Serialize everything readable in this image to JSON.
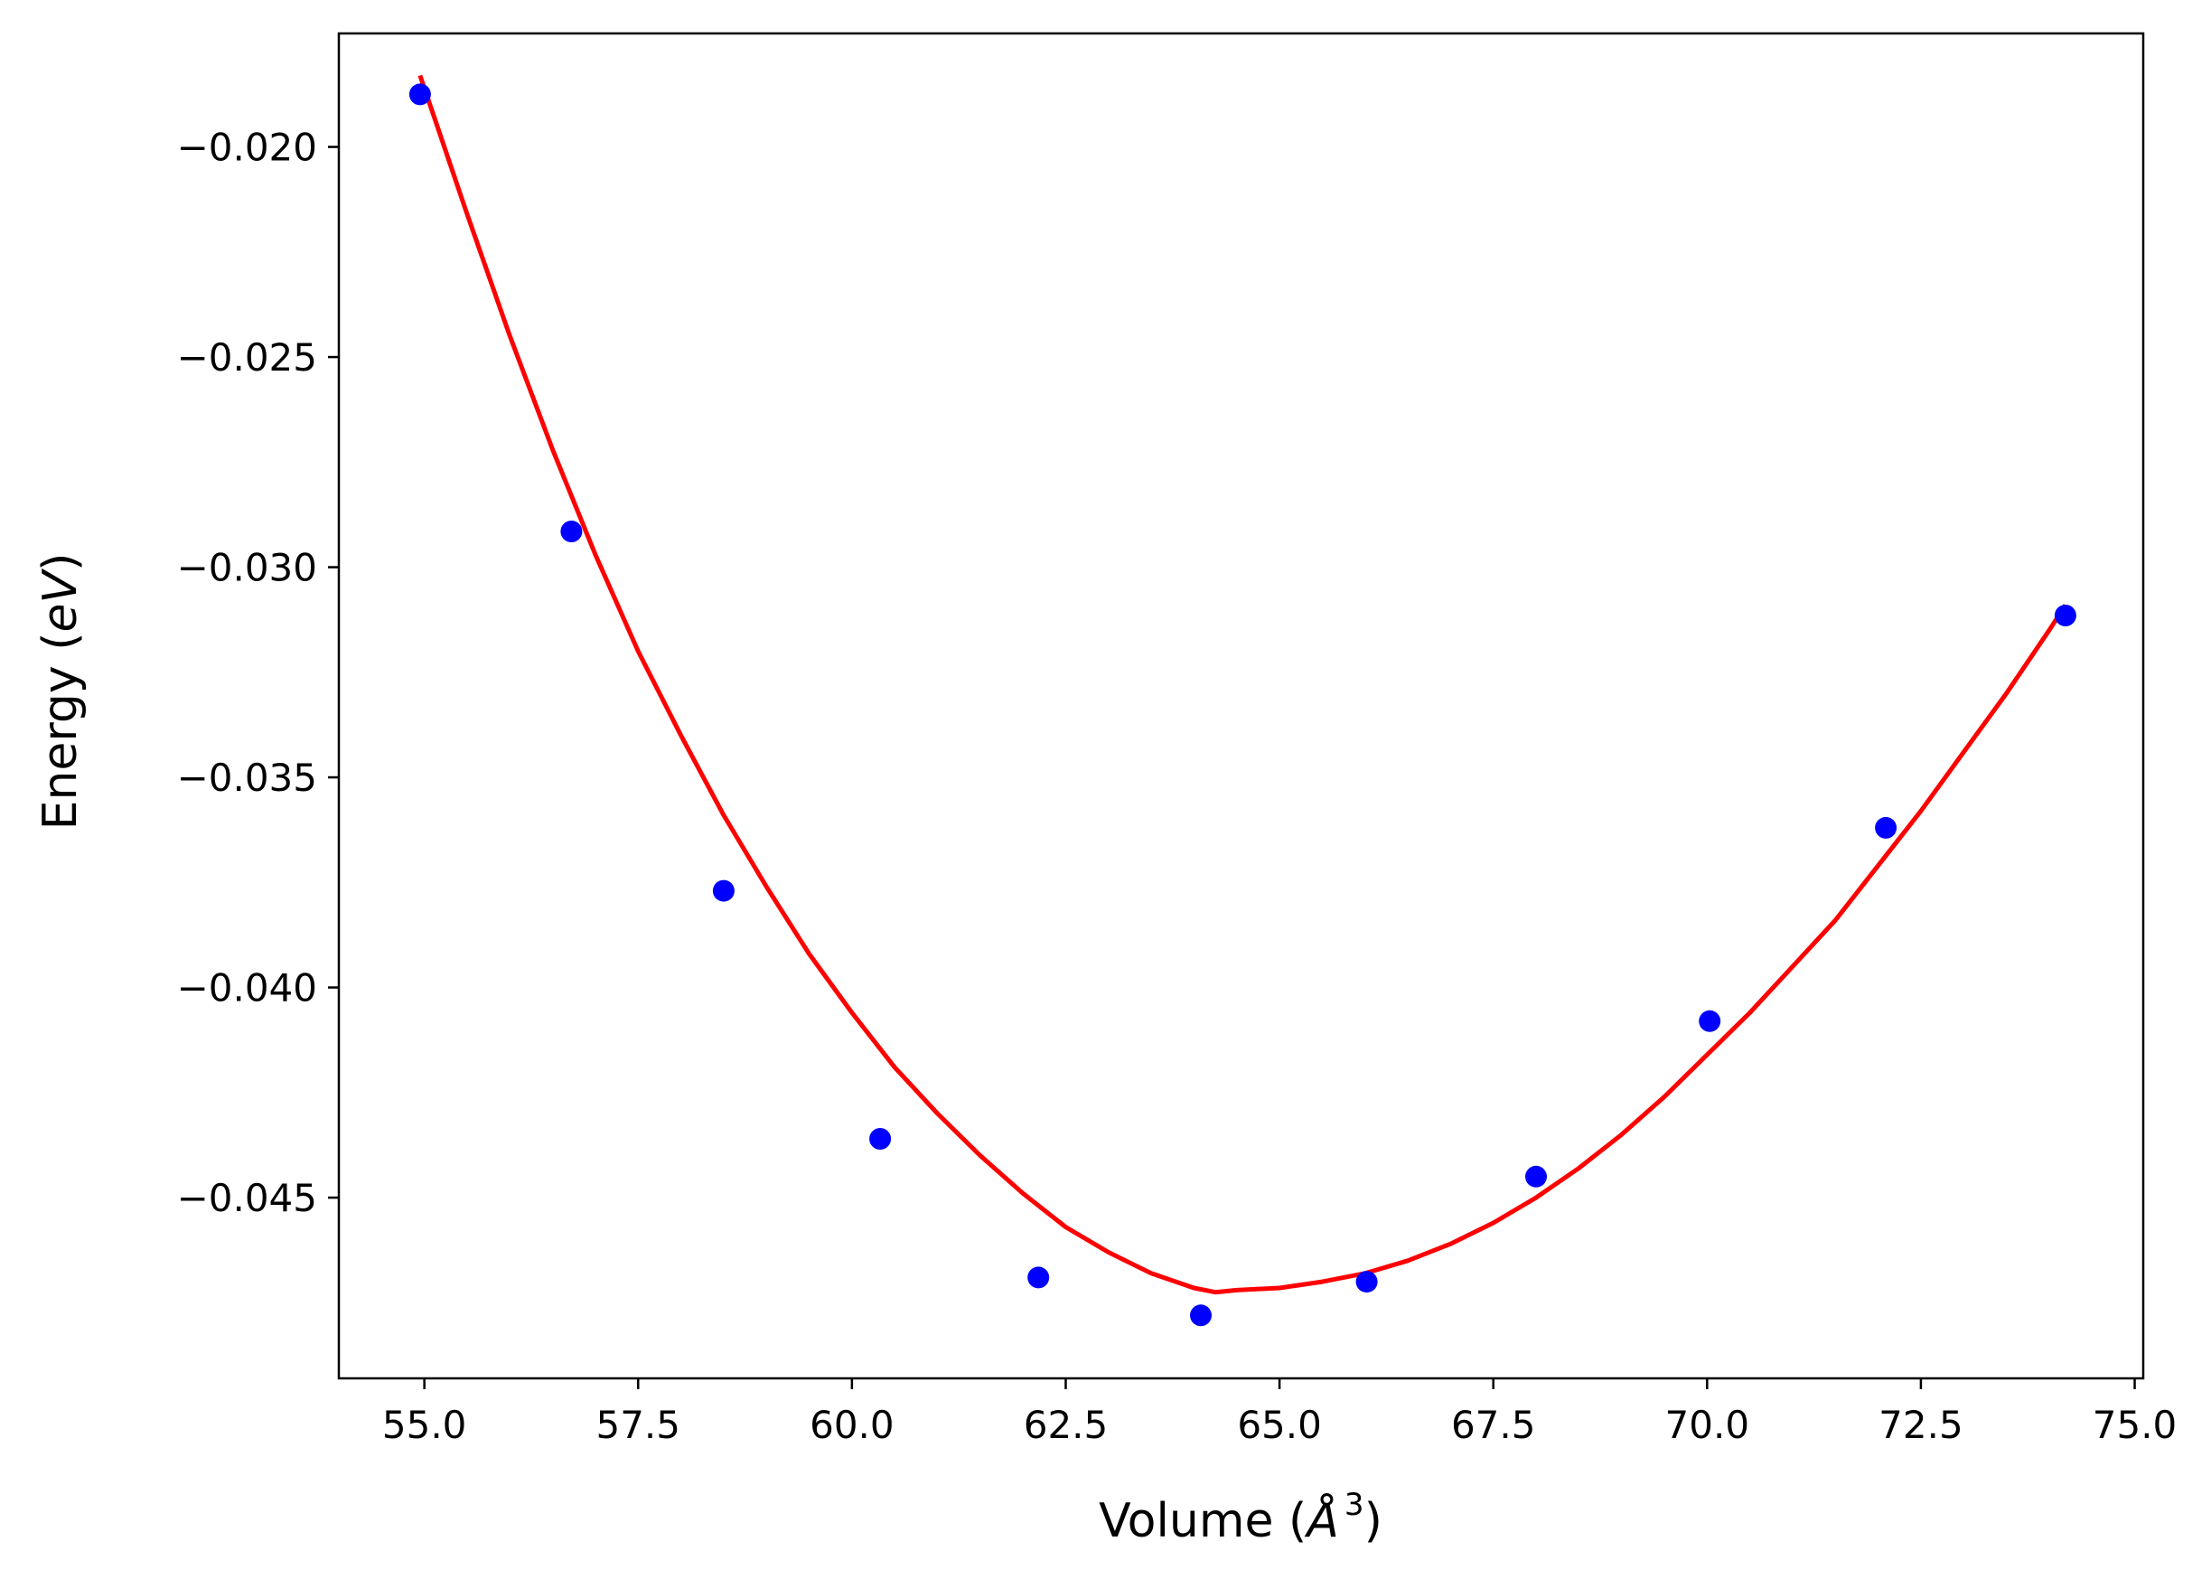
{
  "chart_data": {
    "type": "scatter",
    "title": "",
    "xlabel": "Volume (Å³)",
    "xlabel_parts": {
      "prefix": "Volume (",
      "symbol": "Å",
      "exponent": "3",
      "suffix": ")"
    },
    "ylabel": "Energy (eV)",
    "ylabel_parts": {
      "prefix": "Energy (",
      "unit": "eV",
      "suffix": ")"
    },
    "xlim": [
      54.0,
      75.1
    ],
    "ylim": [
      -0.0493,
      -0.0173
    ],
    "xticks": [
      55.0,
      57.5,
      60.0,
      62.5,
      65.0,
      67.5,
      70.0,
      72.5,
      75.0
    ],
    "xtick_labels": [
      "55.0",
      "57.5",
      "60.0",
      "62.5",
      "65.0",
      "67.5",
      "70.0",
      "72.5",
      "75.0"
    ],
    "yticks": [
      -0.02,
      -0.025,
      -0.03,
      -0.035,
      -0.04,
      -0.045
    ],
    "ytick_labels": [
      "−0.020",
      "−0.025",
      "−0.030",
      "−0.035",
      "−0.040",
      "−0.045"
    ],
    "grid": false,
    "series": [
      {
        "name": "data",
        "kind": "scatter",
        "color": "#0000ff",
        "x": [
          54.95,
          56.72,
          58.5,
          60.33,
          62.18,
          64.08,
          66.02,
          68.0,
          70.03,
          72.09,
          74.19
        ],
        "y": [
          -0.01875,
          -0.02915,
          -0.0377,
          -0.0436,
          -0.0469,
          -0.0478,
          -0.047,
          -0.0445,
          -0.0408,
          -0.0362,
          -0.03115
        ]
      },
      {
        "name": "fit",
        "kind": "line",
        "color": "#ff0000",
        "x": [
          54.95,
          55.5,
          56.0,
          56.5,
          57.0,
          57.5,
          58.0,
          58.5,
          59.0,
          59.5,
          60.0,
          60.5,
          61.0,
          61.5,
          62.0,
          62.5,
          63.0,
          63.5,
          64.0,
          64.25,
          64.5,
          65.0,
          65.5,
          66.0,
          66.5,
          67.0,
          67.5,
          68.0,
          68.5,
          69.0,
          69.5,
          70.0,
          70.5,
          71.0,
          71.5,
          72.0,
          72.5,
          73.0,
          73.5,
          74.0,
          74.19
        ],
        "y": [
          -0.0183,
          -0.0216,
          -0.0245,
          -0.0272,
          -0.0297,
          -0.032,
          -0.034,
          -0.0359,
          -0.0376,
          -0.0392,
          -0.0406,
          -0.0419,
          -0.043,
          -0.044,
          -0.0449,
          -0.0457,
          -0.0463,
          -0.0468,
          -0.04715,
          -0.04725,
          -0.0472,
          -0.04715,
          -0.047,
          -0.0468,
          -0.0465,
          -0.0461,
          -0.0456,
          -0.045,
          -0.0443,
          -0.0435,
          -0.0426,
          -0.0416,
          -0.0406,
          -0.0395,
          -0.0384,
          -0.0371,
          -0.0358,
          -0.0344,
          -0.033,
          -0.0315,
          -0.0309
        ]
      }
    ]
  }
}
